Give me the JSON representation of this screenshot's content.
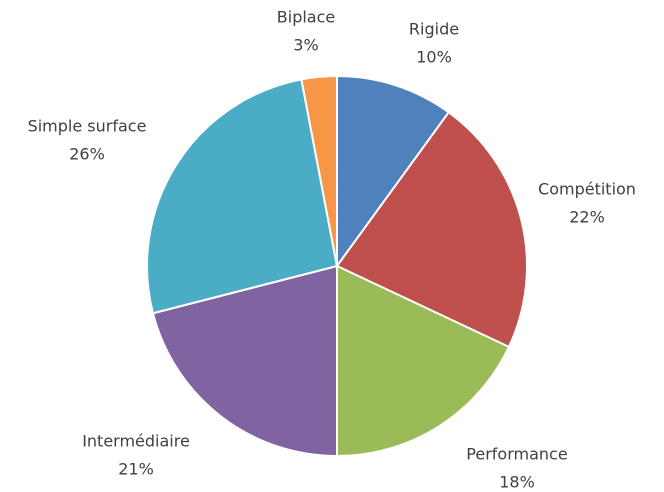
{
  "chart_data": {
    "type": "pie",
    "categories": [
      "Rigide",
      "Compétition",
      "Performance",
      "Intermédiaire",
      "Simple surface",
      "Biplace"
    ],
    "values": [
      10,
      22,
      18,
      21,
      26,
      3
    ],
    "value_labels": [
      "10%",
      "22%",
      "18%",
      "21%",
      "26%",
      "3%"
    ],
    "colors": [
      "#4f81bd",
      "#c0504d",
      "#9bbb59",
      "#8064a2",
      "#4bacc6",
      "#f79646"
    ]
  }
}
